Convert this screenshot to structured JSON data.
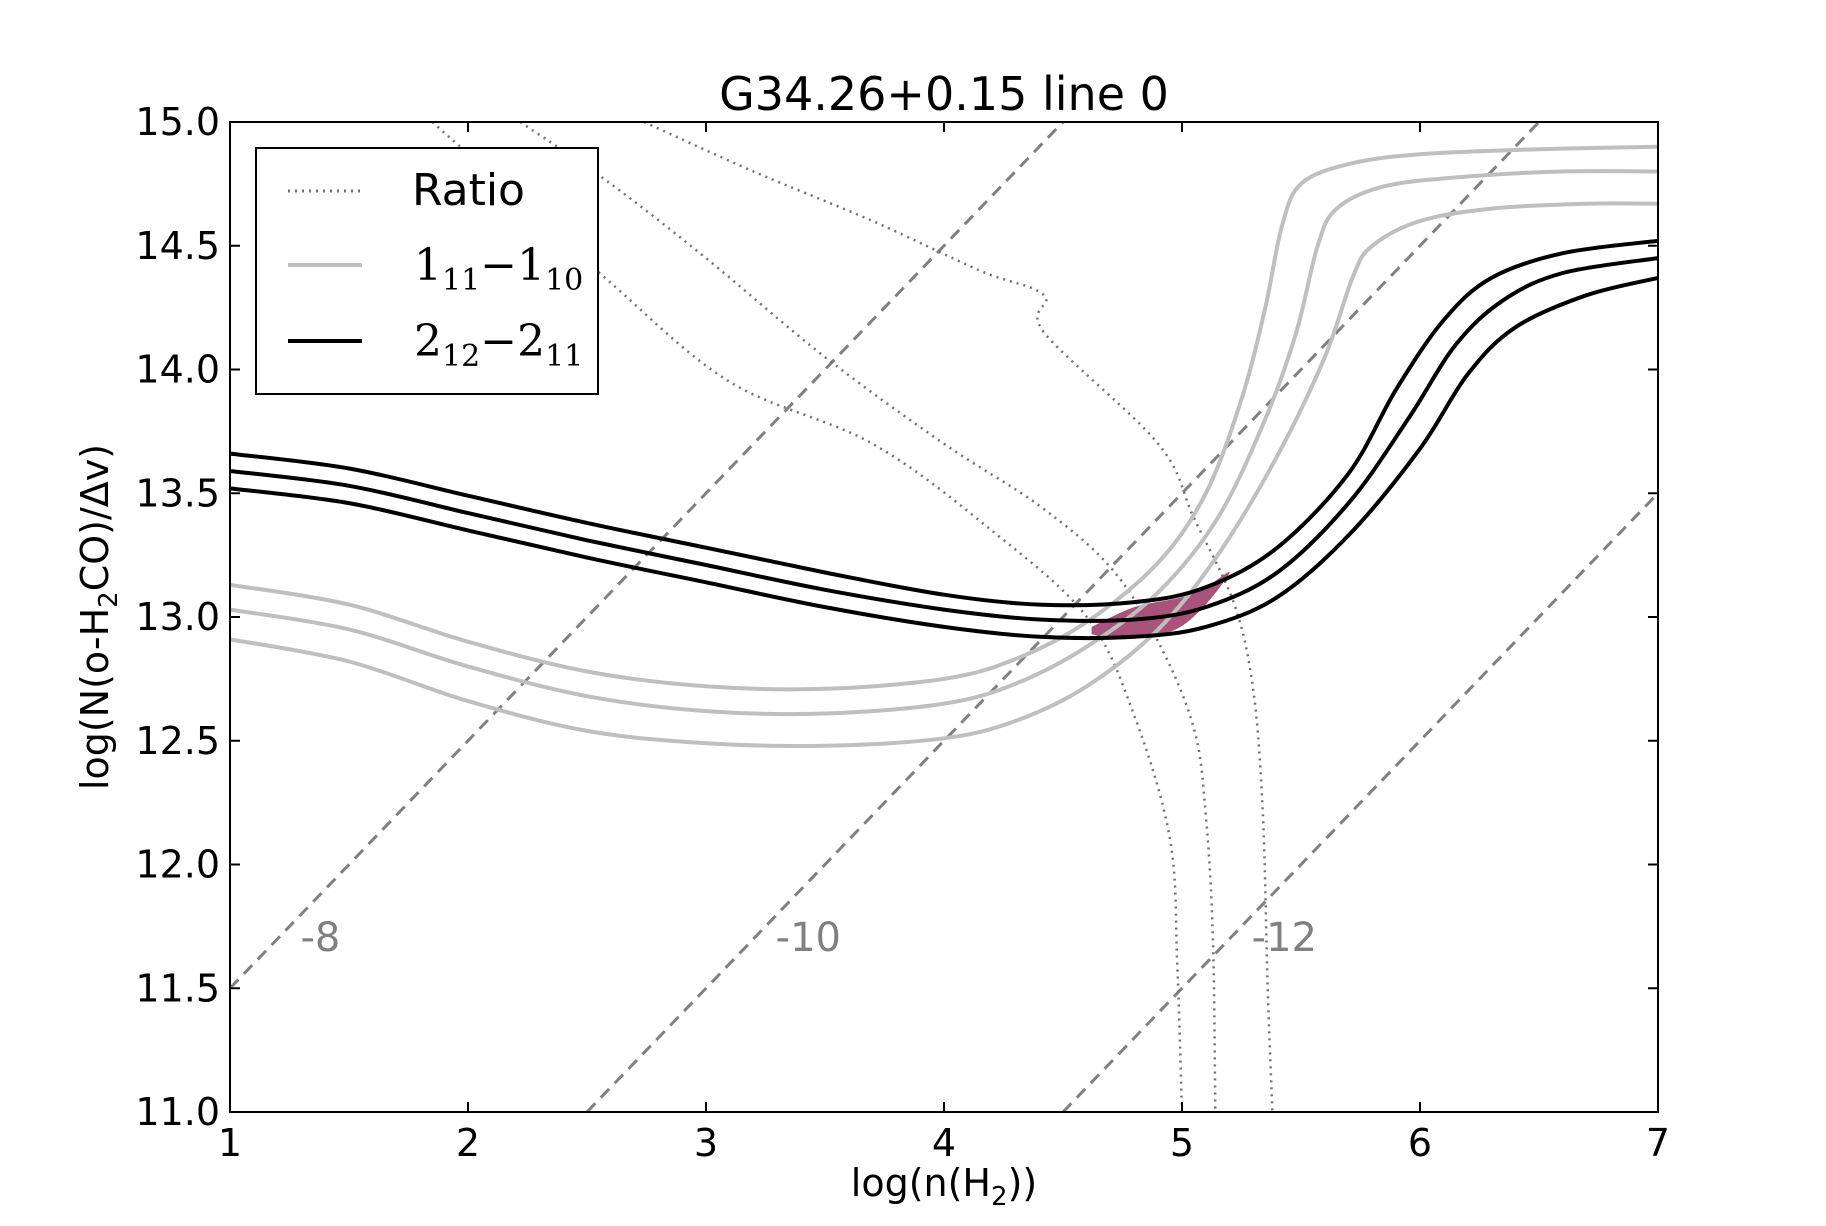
{
  "chart_data": {
    "type": "line",
    "title": "G34.26+0.15 line 0",
    "xlabel": {
      "pre": "log(n(H",
      "sub": "2",
      "post": "))"
    },
    "ylabel": {
      "pre": "log(N(o-H",
      "sub": "2",
      "post": "CO)/Δv)"
    },
    "xlim": [
      1,
      7
    ],
    "ylim": [
      11.0,
      15.0
    ],
    "xticks": [
      1,
      2,
      3,
      4,
      5,
      6,
      7
    ],
    "xtick_labels": [
      "1",
      "2",
      "3",
      "4",
      "5",
      "6",
      "7"
    ],
    "yticks": [
      11.0,
      11.5,
      12.0,
      12.5,
      13.0,
      13.5,
      14.0,
      14.5,
      15.0
    ],
    "ytick_labels": [
      "11.0",
      "11.5",
      "12.0",
      "12.5",
      "13.0",
      "13.5",
      "14.0",
      "14.5",
      "15.0"
    ],
    "grid": false,
    "legend": {
      "placement": "top-left",
      "entries": [
        {
          "text": "Ratio",
          "style": "dotted",
          "color": "#707070"
        },
        {
          "main": "1",
          "sub1": "11",
          "dash": "−",
          "main2": "1",
          "sub2": "10",
          "style": "solid",
          "color": "#bfbfbf"
        },
        {
          "main": "2",
          "sub1": "12",
          "dash": "−",
          "main2": "2",
          "sub2": "11",
          "style": "solid",
          "color": "#000000"
        }
      ]
    },
    "series": [
      {
        "group": "ratio",
        "color": "#707070",
        "style": "dotted",
        "points": [
          [
            2.74,
            15.0
          ],
          [
            3.2,
            14.8
          ],
          [
            3.7,
            14.6
          ],
          [
            4.15,
            14.4
          ],
          [
            4.42,
            14.3
          ],
          [
            4.42,
            14.15
          ],
          [
            4.9,
            13.7
          ],
          [
            5.05,
            13.4
          ],
          [
            5.22,
            13.05
          ],
          [
            5.3,
            12.7
          ],
          [
            5.34,
            12.2
          ],
          [
            5.36,
            11.5
          ],
          [
            5.38,
            11.0
          ]
        ]
      },
      {
        "group": "ratio",
        "color": "#707070",
        "style": "dotted",
        "points": [
          [
            2.22,
            15.0
          ],
          [
            2.6,
            14.75
          ],
          [
            3.0,
            14.45
          ],
          [
            3.5,
            14.05
          ],
          [
            4.0,
            13.7
          ],
          [
            4.4,
            13.45
          ],
          [
            4.7,
            13.2
          ],
          [
            4.9,
            12.9
          ],
          [
            5.05,
            12.55
          ],
          [
            5.1,
            12.2
          ],
          [
            5.13,
            11.7
          ],
          [
            5.14,
            11.0
          ]
        ]
      },
      {
        "group": "ratio",
        "color": "#707070",
        "style": "dotted",
        "points": [
          [
            1.85,
            15.0
          ],
          [
            2.2,
            14.7
          ],
          [
            2.6,
            14.35
          ],
          [
            3.1,
            13.95
          ],
          [
            3.7,
            13.7
          ],
          [
            4.2,
            13.35
          ],
          [
            4.6,
            13.0
          ],
          [
            4.8,
            12.6
          ],
          [
            4.95,
            12.1
          ],
          [
            4.98,
            11.6
          ],
          [
            5.0,
            11.0
          ]
        ]
      },
      {
        "group": "1_11-1_10",
        "color": "#bfbfbf",
        "style": "solid",
        "points": [
          [
            1,
            13.13
          ],
          [
            1.5,
            13.05
          ],
          [
            2,
            12.9
          ],
          [
            2.5,
            12.78
          ],
          [
            3,
            12.72
          ],
          [
            3.5,
            12.71
          ],
          [
            4,
            12.75
          ],
          [
            4.3,
            12.83
          ],
          [
            4.6,
            12.98
          ],
          [
            4.9,
            13.22
          ],
          [
            5.1,
            13.5
          ],
          [
            5.25,
            13.88
          ],
          [
            5.35,
            14.25
          ],
          [
            5.42,
            14.58
          ],
          [
            5.5,
            14.75
          ],
          [
            5.7,
            14.83
          ],
          [
            6,
            14.87
          ],
          [
            6.5,
            14.89
          ],
          [
            7,
            14.9
          ]
        ]
      },
      {
        "group": "1_11-1_10",
        "color": "#bfbfbf",
        "style": "solid",
        "points": [
          [
            1,
            13.03
          ],
          [
            1.5,
            12.95
          ],
          [
            2,
            12.8
          ],
          [
            2.5,
            12.68
          ],
          [
            3,
            12.62
          ],
          [
            3.5,
            12.61
          ],
          [
            4,
            12.65
          ],
          [
            4.3,
            12.73
          ],
          [
            4.6,
            12.88
          ],
          [
            4.9,
            13.1
          ],
          [
            5.15,
            13.4
          ],
          [
            5.35,
            13.8
          ],
          [
            5.48,
            14.15
          ],
          [
            5.57,
            14.5
          ],
          [
            5.65,
            14.65
          ],
          [
            5.85,
            14.74
          ],
          [
            6.2,
            14.78
          ],
          [
            6.6,
            14.8
          ],
          [
            7,
            14.8
          ]
        ]
      },
      {
        "group": "1_11-1_10",
        "color": "#bfbfbf",
        "style": "solid",
        "points": [
          [
            1,
            12.91
          ],
          [
            1.5,
            12.82
          ],
          [
            2,
            12.66
          ],
          [
            2.5,
            12.54
          ],
          [
            3,
            12.49
          ],
          [
            3.5,
            12.48
          ],
          [
            4,
            12.51
          ],
          [
            4.3,
            12.58
          ],
          [
            4.6,
            12.72
          ],
          [
            4.9,
            12.95
          ],
          [
            5.15,
            13.25
          ],
          [
            5.4,
            13.65
          ],
          [
            5.6,
            14.05
          ],
          [
            5.72,
            14.38
          ],
          [
            5.8,
            14.5
          ],
          [
            6.0,
            14.6
          ],
          [
            6.3,
            14.65
          ],
          [
            6.7,
            14.67
          ],
          [
            7,
            14.67
          ]
        ]
      },
      {
        "group": "2_12-2_11",
        "color": "#000000",
        "style": "solid",
        "points": [
          [
            1,
            13.66
          ],
          [
            1.5,
            13.6
          ],
          [
            2,
            13.49
          ],
          [
            2.5,
            13.38
          ],
          [
            3,
            13.28
          ],
          [
            3.5,
            13.18
          ],
          [
            4,
            13.09
          ],
          [
            4.4,
            13.05
          ],
          [
            4.8,
            13.06
          ],
          [
            5.1,
            13.12
          ],
          [
            5.4,
            13.28
          ],
          [
            5.7,
            13.58
          ],
          [
            5.9,
            13.92
          ],
          [
            6.1,
            14.2
          ],
          [
            6.3,
            14.37
          ],
          [
            6.6,
            14.47
          ],
          [
            7,
            14.52
          ]
        ]
      },
      {
        "group": "2_12-2_11",
        "color": "#000000",
        "style": "solid",
        "points": [
          [
            1,
            13.59
          ],
          [
            1.5,
            13.53
          ],
          [
            2,
            13.42
          ],
          [
            2.5,
            13.31
          ],
          [
            3,
            13.21
          ],
          [
            3.5,
            13.11
          ],
          [
            4,
            13.03
          ],
          [
            4.4,
            12.99
          ],
          [
            4.8,
            12.99
          ],
          [
            5.1,
            13.04
          ],
          [
            5.4,
            13.18
          ],
          [
            5.7,
            13.46
          ],
          [
            5.95,
            13.8
          ],
          [
            6.15,
            14.1
          ],
          [
            6.35,
            14.28
          ],
          [
            6.6,
            14.39
          ],
          [
            7,
            14.45
          ]
        ]
      },
      {
        "group": "2_12-2_11",
        "color": "#000000",
        "style": "solid",
        "points": [
          [
            1,
            13.52
          ],
          [
            1.5,
            13.46
          ],
          [
            2,
            13.35
          ],
          [
            2.5,
            13.24
          ],
          [
            3,
            13.14
          ],
          [
            3.5,
            13.04
          ],
          [
            4,
            12.96
          ],
          [
            4.4,
            12.92
          ],
          [
            4.8,
            12.92
          ],
          [
            5.1,
            12.96
          ],
          [
            5.4,
            13.08
          ],
          [
            5.7,
            13.33
          ],
          [
            6.0,
            13.68
          ],
          [
            6.2,
            13.98
          ],
          [
            6.4,
            14.17
          ],
          [
            6.7,
            14.3
          ],
          [
            7,
            14.37
          ]
        ]
      }
    ],
    "abundance_lines": [
      {
        "label": "-8",
        "color": "#808080",
        "style": "dashed",
        "points": [
          [
            1,
            11.5
          ],
          [
            4.5,
            15.0
          ]
        ],
        "label_at": [
          1.38,
          11.65
        ]
      },
      {
        "label": "-10",
        "color": "#808080",
        "style": "dashed",
        "points": [
          [
            2.5,
            11.0
          ],
          [
            6.5,
            15.0
          ]
        ],
        "label_at": [
          3.43,
          11.65
        ]
      },
      {
        "label": "-12",
        "color": "#808080",
        "style": "dashed",
        "points": [
          [
            4.5,
            11.0
          ],
          [
            7,
            13.5
          ]
        ],
        "label_at": [
          5.43,
          11.65
        ]
      }
    ],
    "fill_region": {
      "color": "#a0406e",
      "points": [
        [
          4.62,
          12.96
        ],
        [
          4.8,
          13.04
        ],
        [
          5.0,
          13.08
        ],
        [
          5.1,
          13.12
        ],
        [
          5.2,
          13.18
        ],
        [
          5.08,
          13.03
        ],
        [
          4.95,
          12.94
        ],
        [
          4.75,
          12.91
        ],
        [
          4.62,
          12.93
        ]
      ]
    }
  }
}
